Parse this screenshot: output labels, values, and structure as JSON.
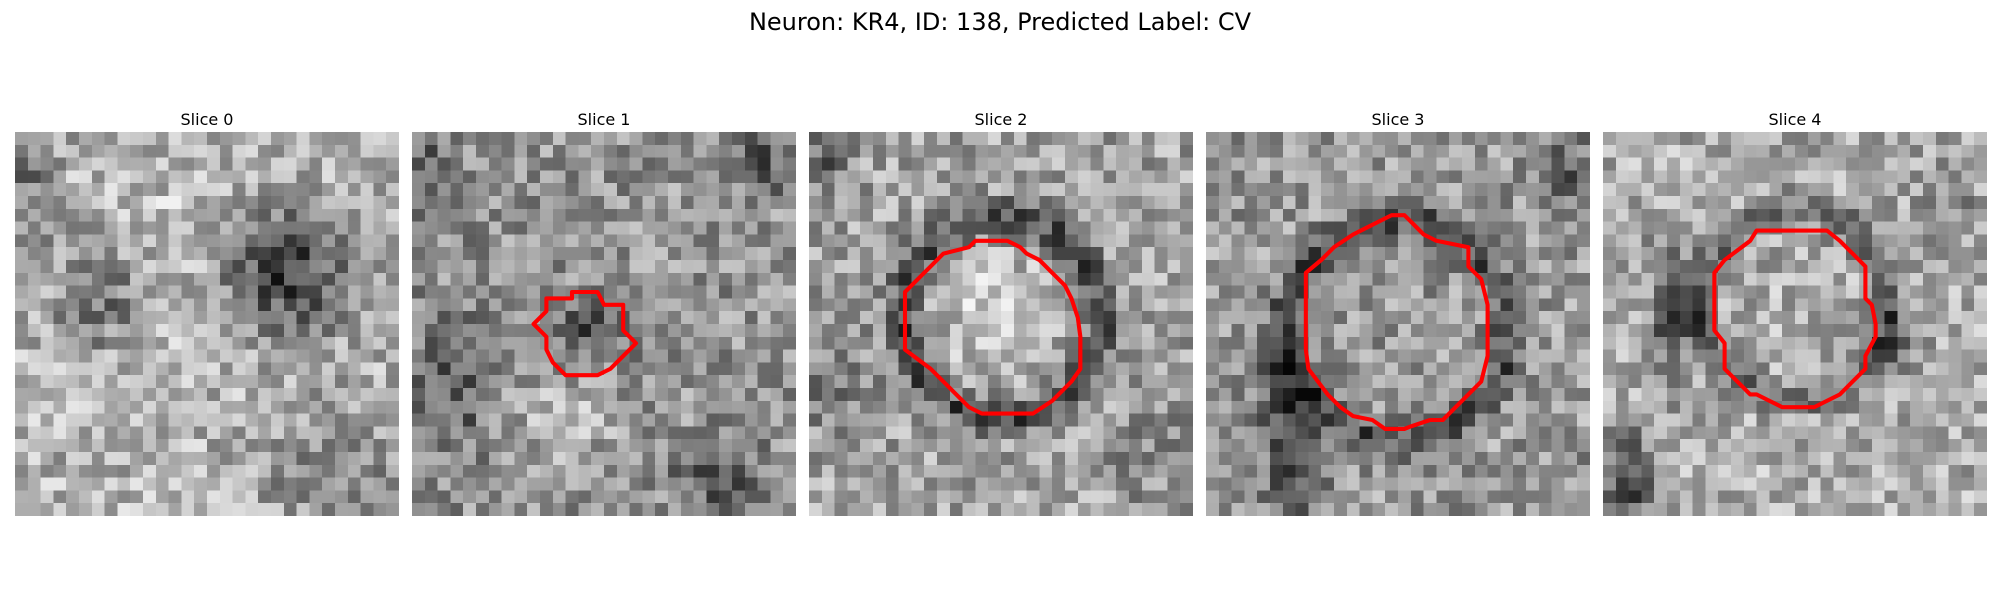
{
  "figure": {
    "title": "Neuron: KR4, ID: 138, Predicted Label: CV"
  },
  "panels": [
    {
      "title": "Slice 0",
      "contour_present": false,
      "contour_color": "#ff0000"
    },
    {
      "title": "Slice 1",
      "contour_present": true,
      "contour_color": "#ff0000"
    },
    {
      "title": "Slice 2",
      "contour_present": true,
      "contour_color": "#ff0000"
    },
    {
      "title": "Slice 3",
      "contour_present": true,
      "contour_color": "#ff0000"
    },
    {
      "title": "Slice 4",
      "contour_present": true,
      "contour_color": "#ff0000"
    }
  ],
  "colormap": "gray"
}
